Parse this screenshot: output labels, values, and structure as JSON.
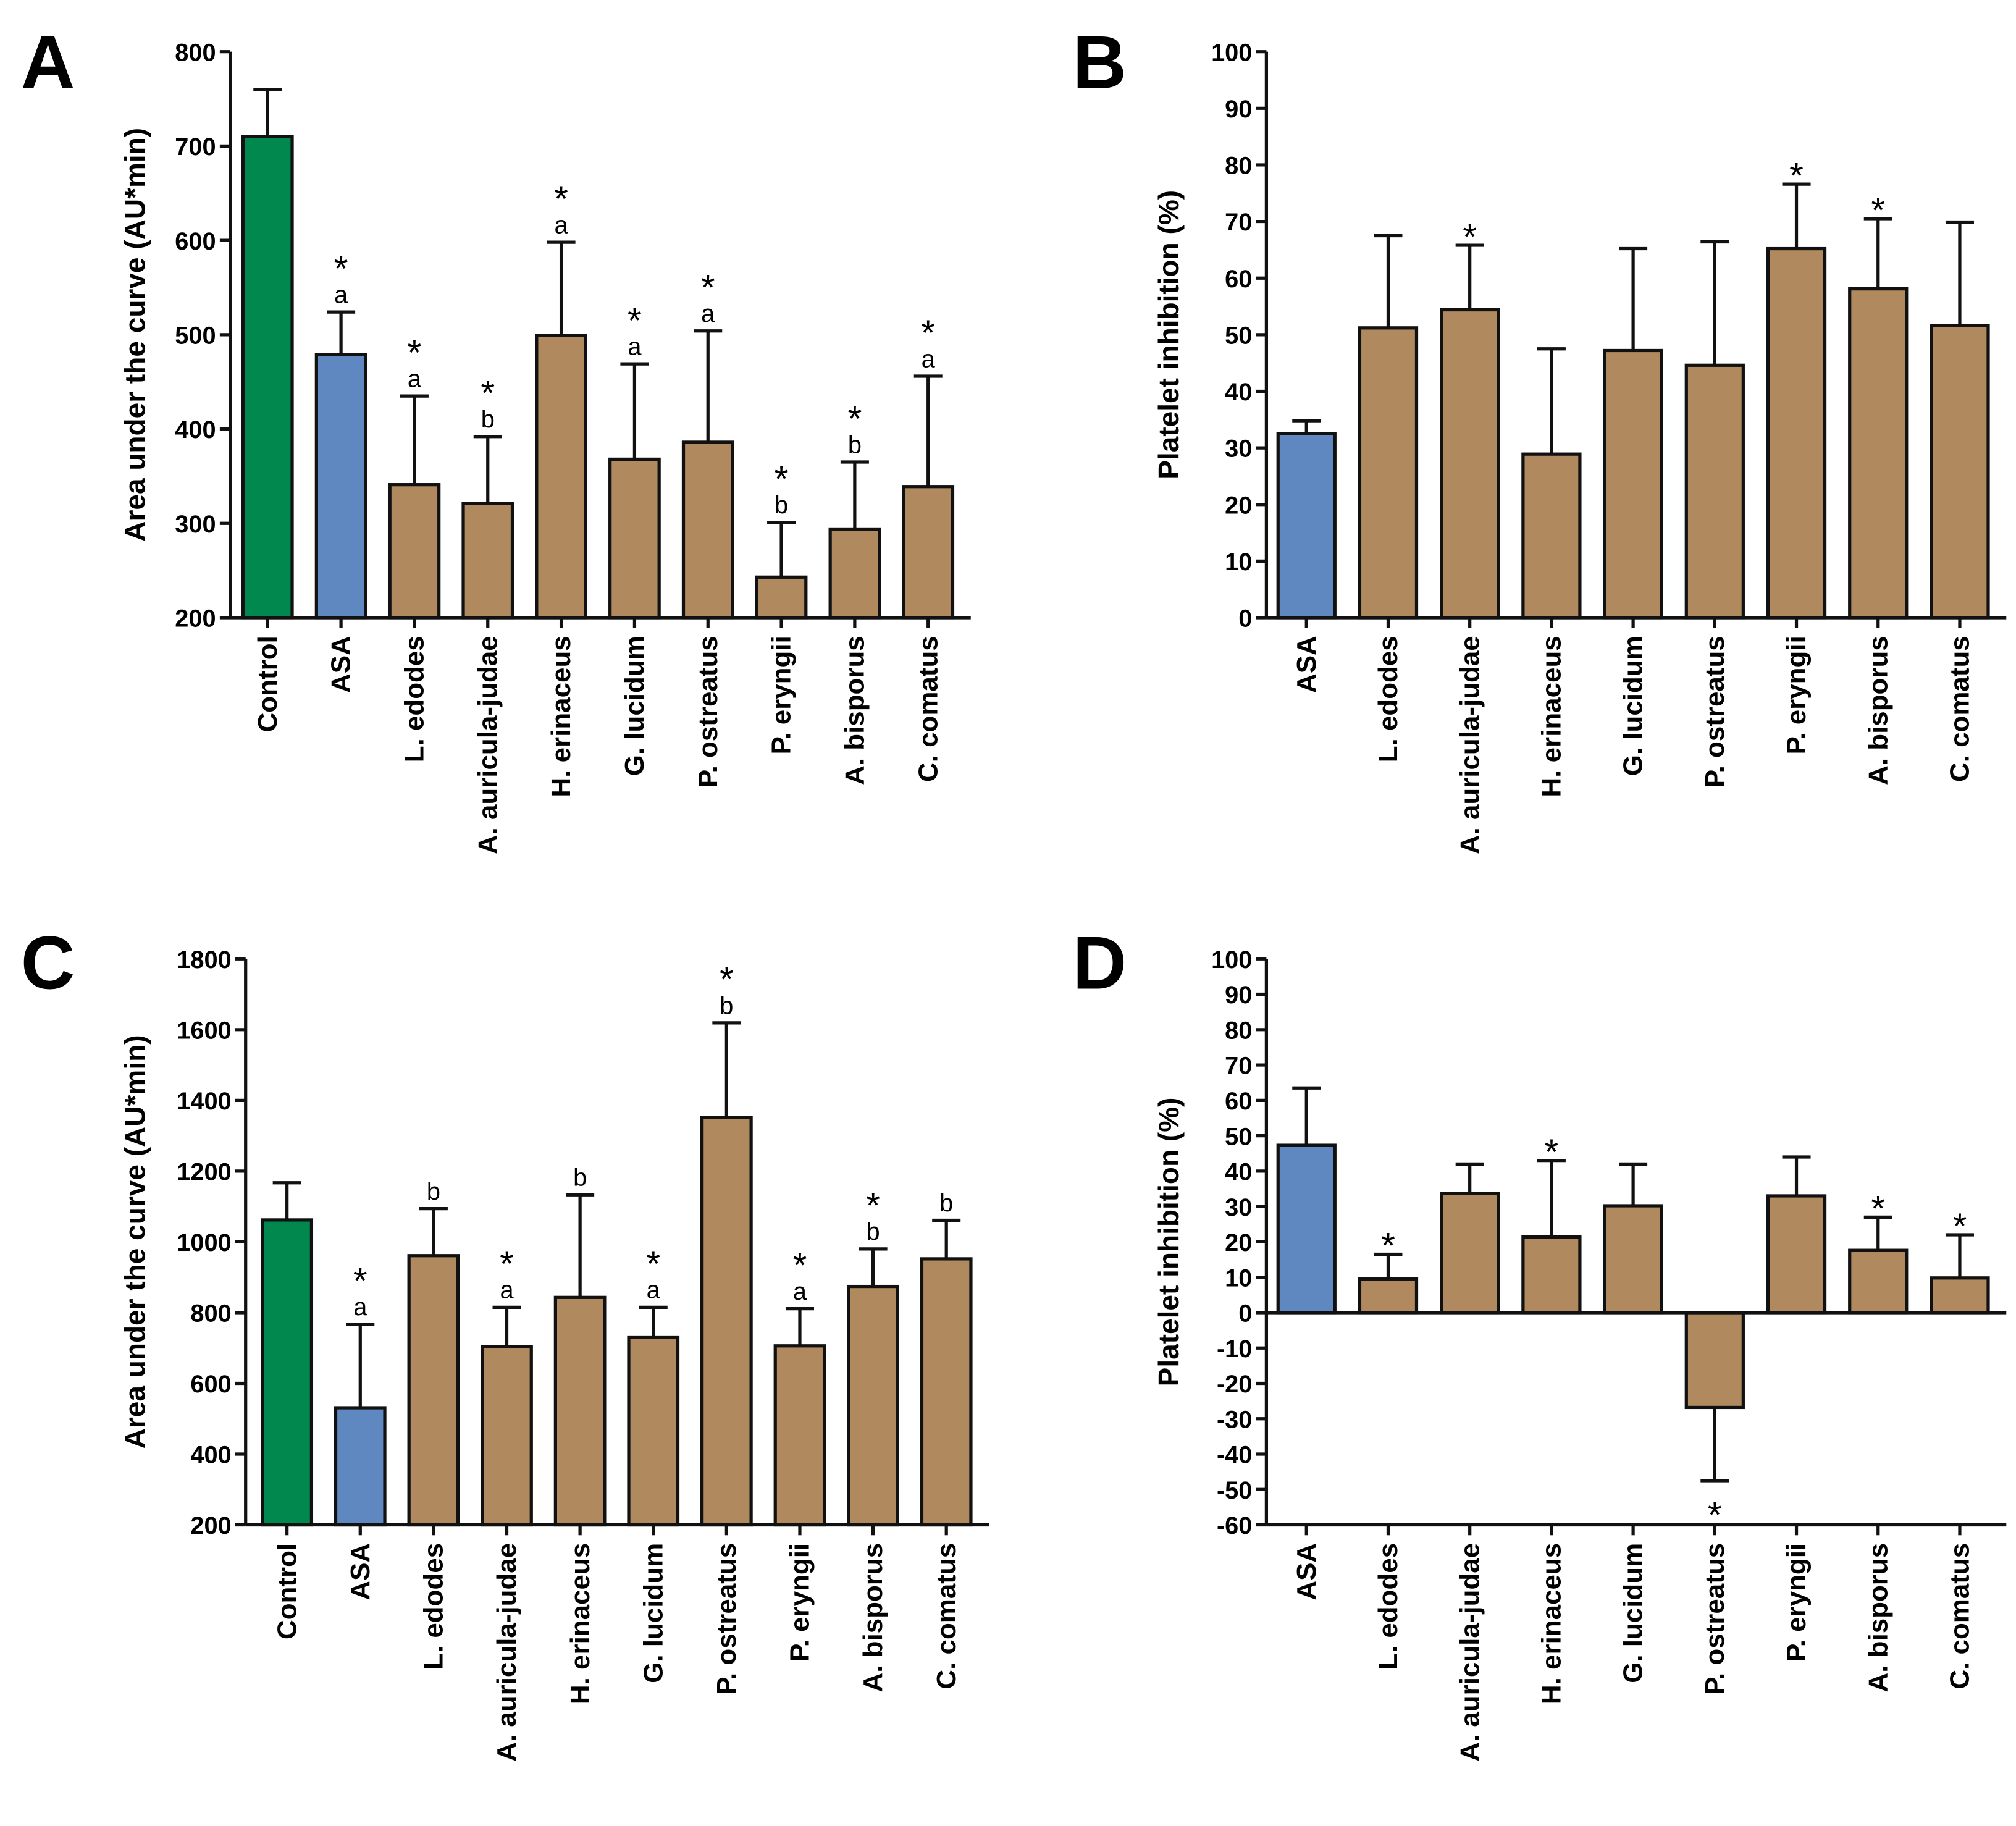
{
  "colors": {
    "control": "#00884f",
    "asa": "#6088c0",
    "mushroom": "#b08a5e",
    "stroke": "#111111"
  },
  "chart_data": [
    {
      "panel": "A",
      "type": "bar",
      "ylabel": "Area under the curve (AU*min)",
      "ylim": [
        200,
        800
      ],
      "yticks": [
        200,
        300,
        400,
        500,
        600,
        700,
        800
      ],
      "categories": [
        "Control",
        "ASA",
        "L. edodes",
        "A. auricula-judae",
        "H. erinaceus",
        "G. lucidum",
        "P. ostreatus",
        "P. eryngii",
        "A. bisporus",
        "C. comatus"
      ],
      "values": [
        710,
        479,
        341,
        321,
        499,
        368,
        386,
        243,
        294,
        339
      ],
      "error_upper": [
        760,
        524,
        435,
        392,
        598,
        469,
        504,
        301,
        365,
        456
      ],
      "star": [
        false,
        true,
        true,
        true,
        true,
        true,
        true,
        true,
        true,
        true
      ],
      "letters": [
        "",
        "a",
        "a",
        "b",
        "a",
        "a",
        "a",
        "b",
        "b",
        "a"
      ]
    },
    {
      "panel": "B",
      "type": "bar",
      "ylabel": "Platelet inhibition (%)",
      "ylim": [
        0,
        100
      ],
      "yticks": [
        0,
        10,
        20,
        30,
        40,
        50,
        60,
        70,
        80,
        90,
        100
      ],
      "categories": [
        "ASA",
        "L. edodes",
        "A. auricula-judae",
        "H. erinaceus",
        "G. lucidum",
        "P. ostreatus",
        "P. eryngii",
        "A. bisporus",
        "C. comatus"
      ],
      "values": [
        32.5,
        51.2,
        54.4,
        28.9,
        47.2,
        44.6,
        65.2,
        58.1,
        51.6
      ],
      "error_upper": [
        34.8,
        67.5,
        65.8,
        47.5,
        65.2,
        66.4,
        76.6,
        70.5,
        69.9
      ],
      "star": [
        false,
        false,
        true,
        false,
        false,
        false,
        true,
        true,
        false
      ],
      "letters": [
        "",
        "",
        "",
        "",
        "",
        "",
        "",
        "",
        ""
      ]
    },
    {
      "panel": "C",
      "type": "bar",
      "ylabel": "Area under the curve (AU*min)",
      "ylim": [
        200,
        1800
      ],
      "yticks": [
        200,
        400,
        600,
        800,
        1000,
        1200,
        1400,
        1600,
        1800
      ],
      "categories": [
        "Control",
        "ASA",
        "L. edodes",
        "A. auricula-judae",
        "H. erinaceus",
        "G. lucidum",
        "P. ostreatus",
        "P. eryngii",
        "A. bisporus",
        "C. comatus"
      ],
      "values": [
        1062,
        531,
        961,
        704,
        843,
        731,
        1352,
        706,
        874,
        952
      ],
      "error_upper": [
        1167,
        767,
        1094,
        815,
        1133,
        815,
        1619,
        811,
        980,
        1061
      ],
      "star": [
        false,
        true,
        false,
        true,
        false,
        true,
        true,
        true,
        true,
        false
      ],
      "letters": [
        "",
        "a",
        "b",
        "a",
        "b",
        "a",
        "b",
        "a",
        "b",
        "b"
      ]
    },
    {
      "panel": "D",
      "type": "bar",
      "ylabel": "Platelet inhibition (%)",
      "ylim": [
        -60,
        100
      ],
      "yticks": [
        -60,
        -50,
        -40,
        -30,
        -20,
        -10,
        0,
        10,
        20,
        30,
        40,
        50,
        60,
        70,
        80,
        90,
        100
      ],
      "categories": [
        "ASA",
        "L. edodes",
        "A. auricula-judae",
        "H. erinaceus",
        "G. lucidum",
        "P. ostreatus",
        "P. eryngii",
        "A. bisporus",
        "C. comatus"
      ],
      "values": [
        47.3,
        9.5,
        33.7,
        21.4,
        30.2,
        -26.8,
        33.0,
        17.6,
        9.8
      ],
      "error_upper": [
        63.5,
        16.5,
        42.0,
        43.0,
        42.0,
        -47.5,
        44.0,
        27.0,
        22.0
      ],
      "star": [
        false,
        true,
        false,
        true,
        false,
        true,
        false,
        true,
        true
      ],
      "letters": [
        "",
        "",
        "",
        "",
        "",
        "",
        "",
        "",
        ""
      ]
    }
  ]
}
